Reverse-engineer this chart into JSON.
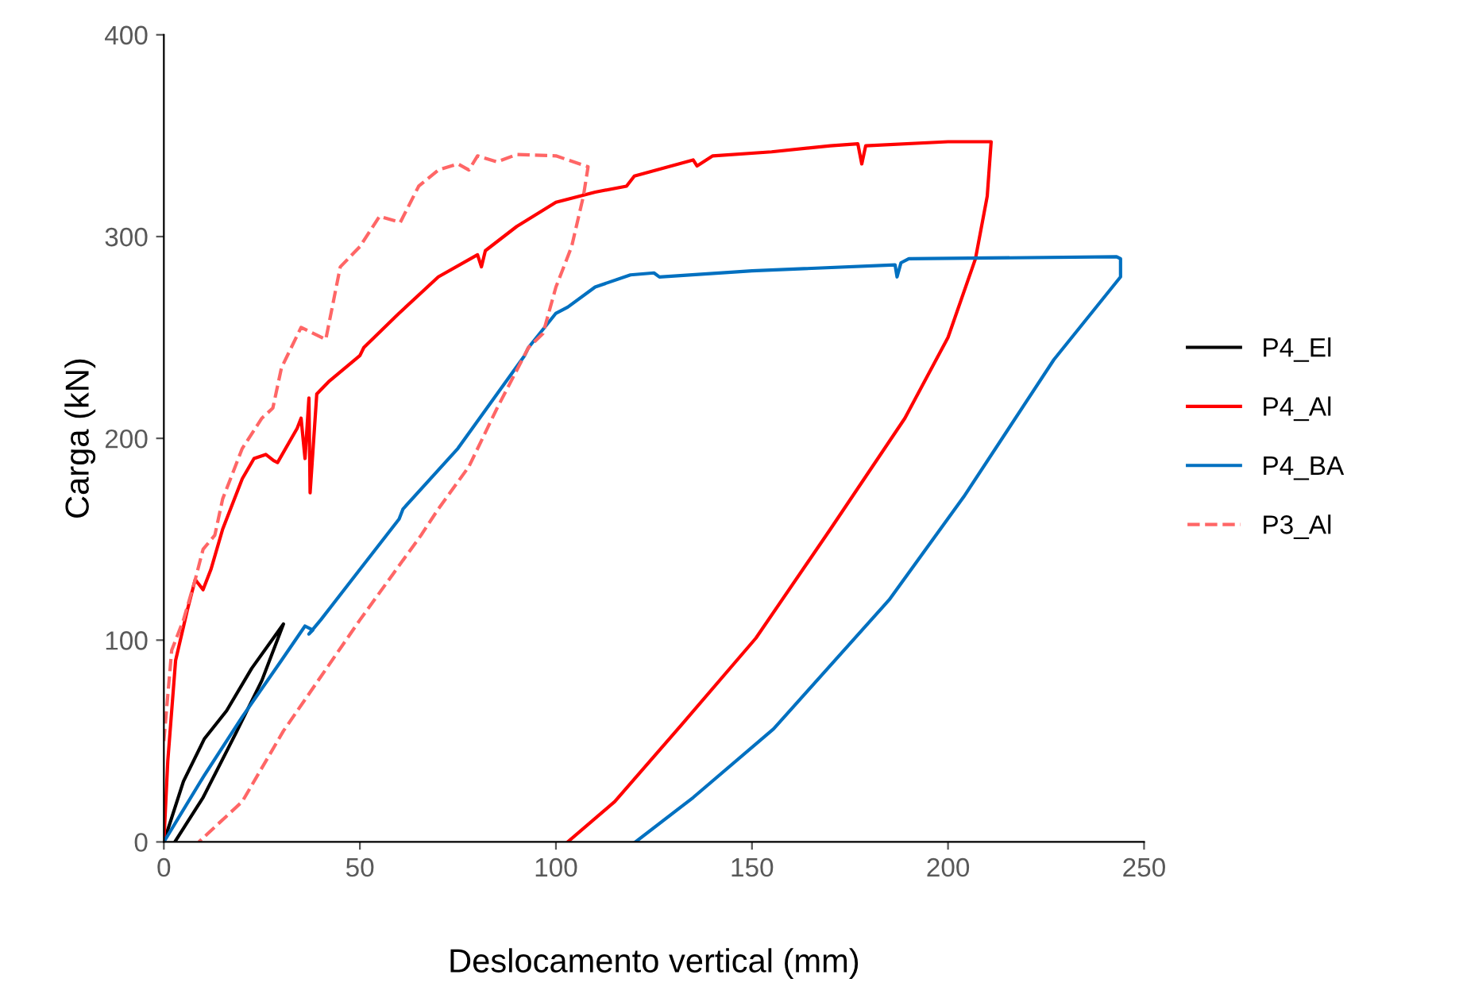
{
  "chart_data": {
    "type": "line",
    "xlabel": "Deslocamento vertical (mm)",
    "ylabel": "Carga (kN)",
    "xlim": [
      0,
      250
    ],
    "ylim": [
      0,
      400
    ],
    "xticks": [
      0,
      50,
      100,
      150,
      200,
      250
    ],
    "yticks": [
      0,
      100,
      200,
      300,
      400
    ],
    "grid": false,
    "legend": "right",
    "marker": "none",
    "series": [
      {
        "name": "P4_El",
        "color": "#000000",
        "line_style": "solid",
        "x": [
          0,
          5,
          10.3,
          16,
          22.4,
          30.5,
          25,
          18.4,
          10,
          2.8
        ],
        "values": [
          0,
          30,
          51,
          65,
          86,
          108,
          80,
          54,
          22,
          0
        ]
      },
      {
        "name": "P4_Al",
        "color": "#ff0000",
        "line_style": "solid",
        "x": [
          0,
          1,
          3,
          6,
          8,
          10,
          12,
          15,
          20,
          23,
          26,
          28,
          29,
          34,
          35,
          36,
          37,
          37.3,
          39,
          42,
          50,
          51,
          60,
          70,
          80,
          81,
          82,
          90,
          100,
          110,
          118,
          120,
          135,
          136,
          140,
          155,
          170,
          177,
          178,
          179,
          200,
          211,
          210,
          207,
          200,
          189,
          170,
          151,
          132,
          115,
          103
        ],
        "values": [
          0,
          40,
          90,
          115,
          130,
          125,
          135,
          155,
          180,
          190,
          192,
          189,
          188,
          205,
          210,
          190,
          220,
          173,
          222,
          228,
          241,
          245,
          262,
          280,
          291,
          285,
          293,
          305,
          317,
          322,
          325,
          330,
          338,
          335,
          340,
          342,
          345,
          346,
          336,
          345,
          347,
          347,
          320,
          289,
          250,
          210,
          155,
          101,
          58,
          20,
          0
        ]
      },
      {
        "name": "P4_BA",
        "color": "#0070c0",
        "line_style": "solid",
        "x": [
          0,
          10,
          20,
          30,
          36,
          38,
          37,
          40,
          50,
          60,
          61,
          75,
          92,
          93,
          100,
          103,
          110,
          119,
          125,
          126.4,
          150,
          186.5,
          187,
          188,
          190,
          243,
          244,
          244,
          227,
          204,
          185,
          155.5,
          135,
          120.3
        ],
        "values": [
          0,
          32,
          62,
          90,
          107,
          105,
          103,
          110,
          135,
          160,
          165,
          195,
          241,
          245,
          262,
          265,
          275,
          281,
          282,
          280,
          283,
          286,
          280,
          287,
          289,
          290,
          289,
          280,
          239,
          171,
          120,
          56,
          22,
          0
        ]
      },
      {
        "name": "P3_Al",
        "color": "#ff6666",
        "line_style": "dashed",
        "x": [
          0,
          2,
          5,
          8,
          10,
          13,
          15,
          20,
          25,
          27.8,
          30,
          35,
          41.3,
          45,
          50,
          55,
          60.3,
          65,
          70,
          75,
          77.8,
          80,
          85,
          90,
          100,
          108.2,
          107,
          104,
          100,
          96.7,
          93,
          85,
          77.8,
          70,
          65.6,
          50,
          30.5,
          20,
          8.9
        ],
        "values": [
          50,
          95,
          110,
          130,
          145,
          152,
          170,
          195,
          210,
          215,
          235,
          255,
          249,
          285,
          295,
          310,
          307,
          325,
          333,
          336,
          333,
          340,
          337,
          340.7,
          340,
          334.6,
          320,
          295,
          275,
          252,
          245,
          215,
          186,
          165,
          152,
          110,
          55,
          20,
          0
        ]
      }
    ]
  }
}
